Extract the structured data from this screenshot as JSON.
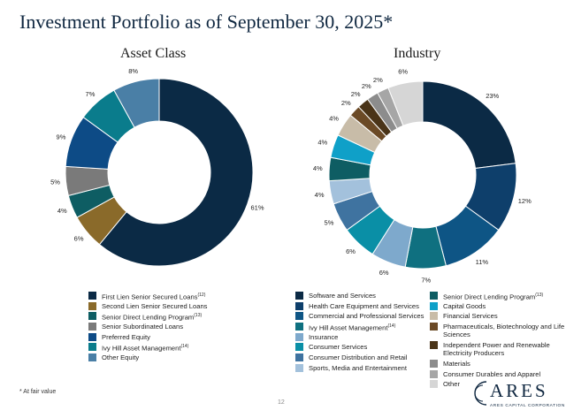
{
  "title": "Investment Portfolio as of September 30, 2025",
  "title_mark": "*",
  "footnote": "* At fair value",
  "page_number": "12",
  "logo": {
    "word": "ARES",
    "sub": "ARES CAPITAL CORPORATION"
  },
  "chart_data": [
    {
      "type": "pie",
      "title": "Asset Class",
      "categories": [
        "First Lien Senior Secured Loans",
        "Second Lien Senior Secured Loans",
        "Senior Direct Lending Program",
        "Senior Subordinated Loans",
        "Preferred Equity",
        "Ivy Hill Asset Management",
        "Other Equity"
      ],
      "values": [
        61,
        6,
        4,
        5,
        9,
        7,
        8
      ],
      "value_labels": [
        "61%",
        "6%",
        "4%",
        "5%",
        "9%",
        "7%",
        "8%"
      ],
      "footnote_refs": [
        "(12)",
        "",
        "(13)",
        "",
        "",
        "(14)",
        ""
      ],
      "colors": [
        "#0b2a45",
        "#8a6a2a",
        "#0e5d63",
        "#7a7a7a",
        "#0d4b86",
        "#0a7c8c",
        "#4a7fa6"
      ]
    },
    {
      "type": "pie",
      "title": "Industry",
      "categories": [
        "Software and Services",
        "Health Care Equipment and Services",
        "Commercial and Professional Services",
        "Ivy Hill Asset Management",
        "Insurance",
        "Consumer Services",
        "Consumer Distribution and Retail",
        "Sports, Media and Entertainment",
        "Senior Direct Lending Program",
        "Capital Goods",
        "Financial Services",
        "Pharmaceuticals, Biotechnology and Life Sciences",
        "Independent Power and Renewable Electricity Producers",
        "Materials",
        "Consumer Durables and Apparel",
        "Other"
      ],
      "values": [
        23,
        12,
        11,
        7,
        6,
        6,
        5,
        4,
        4,
        4,
        4,
        2,
        2,
        2,
        2,
        6
      ],
      "value_labels": [
        "23%",
        "12%",
        "11%",
        "7%",
        "6%",
        "6%",
        "5%",
        "4%",
        "4%",
        "4%",
        "4%",
        "2%",
        "2%",
        "2%",
        "2%",
        "6%"
      ],
      "footnote_refs": [
        "",
        "",
        "",
        "(14)",
        "",
        "",
        "",
        "",
        "(13)",
        "",
        "",
        "",
        "",
        "",
        "",
        ""
      ],
      "colors": [
        "#0b2a45",
        "#0e3f6b",
        "#0e5585",
        "#0f7080",
        "#7ea9cc",
        "#0a8fa6",
        "#3f73a0",
        "#a3c1dc",
        "#0e5d63",
        "#0fa0c8",
        "#c8bca8",
        "#6b4a26",
        "#4a3418",
        "#8c8c8c",
        "#a6a6a6",
        "#d6d6d6"
      ]
    }
  ]
}
